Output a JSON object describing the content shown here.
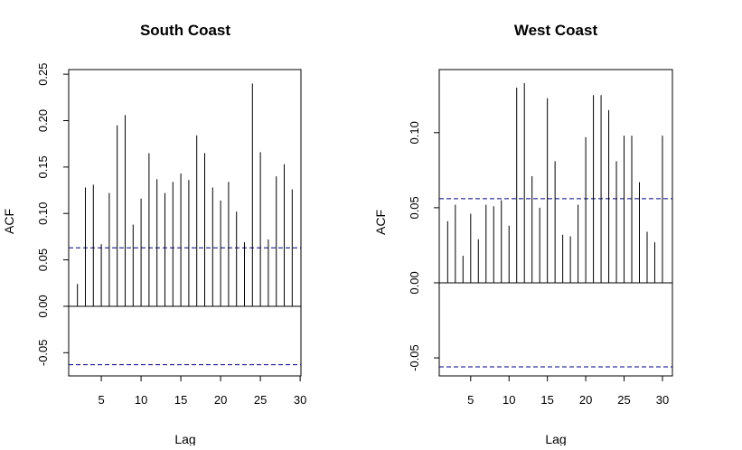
{
  "chart_data": [
    {
      "type": "bar",
      "title": "South Coast",
      "xlabel": "Lag",
      "ylabel": "ACF",
      "x_ticks": [
        "5",
        "10",
        "15",
        "20",
        "25",
        "30"
      ],
      "y_ticks": [
        "-0.05",
        "0.00",
        "0.05",
        "0.10",
        "0.15",
        "0.20",
        "0.25"
      ],
      "ylim": [
        -0.075,
        0.255
      ],
      "xlim": [
        0.9,
        30.1
      ],
      "conf_limit": 0.063,
      "line_color": "#000080",
      "lags": [
        2,
        3,
        4,
        5,
        6,
        7,
        8,
        9,
        10,
        11,
        12,
        13,
        14,
        15,
        16,
        17,
        18,
        19,
        20,
        21,
        22,
        23,
        24,
        25,
        26,
        27,
        28,
        29
      ],
      "values": [
        0.024,
        0.128,
        0.131,
        0.067,
        0.122,
        0.195,
        0.206,
        0.088,
        0.116,
        0.165,
        0.137,
        0.122,
        0.134,
        0.143,
        0.136,
        0.184,
        0.165,
        0.128,
        0.114,
        0.134,
        0.102,
        0.069,
        0.24,
        0.166,
        0.072,
        0.14,
        0.153,
        0.126
      ]
    },
    {
      "type": "bar",
      "title": "West Coast",
      "xlabel": "Lag",
      "ylabel": "ACF",
      "x_ticks": [
        "5",
        "10",
        "15",
        "20",
        "25",
        "30"
      ],
      "y_ticks": [
        "-0.05",
        "0.00",
        "0.05",
        "0.10"
      ],
      "ylim": [
        -0.062,
        0.142
      ],
      "xlim": [
        0.9,
        31.3
      ],
      "conf_limit": 0.056,
      "line_color": "#000080",
      "lags": [
        2,
        3,
        4,
        5,
        6,
        7,
        8,
        9,
        10,
        11,
        12,
        13,
        14,
        15,
        16,
        17,
        18,
        19,
        20,
        21,
        22,
        23,
        24,
        25,
        26,
        27,
        28,
        29,
        30
      ],
      "values": [
        0.041,
        0.052,
        0.018,
        0.046,
        0.029,
        0.052,
        0.051,
        0.055,
        0.038,
        0.13,
        0.133,
        0.071,
        0.05,
        0.123,
        0.081,
        0.032,
        0.031,
        0.052,
        0.097,
        0.125,
        0.125,
        0.115,
        0.081,
        0.098,
        0.098,
        0.067,
        0.034,
        0.027,
        0.098
      ]
    }
  ]
}
